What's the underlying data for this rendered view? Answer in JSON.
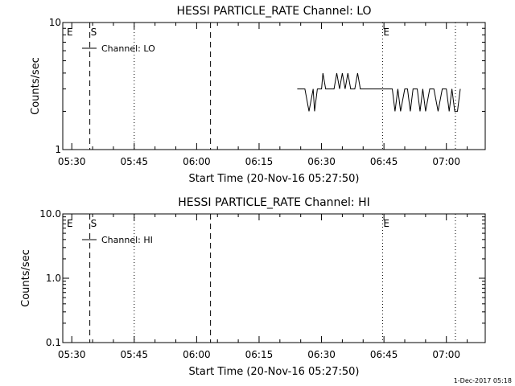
{
  "chart_data": [
    {
      "type": "line",
      "title": "HESSI PARTICLE_RATE Channel: LO",
      "xlabel": "Start Time (20-Nov-16 05:27:50)",
      "ylabel": "Counts/sec",
      "yscale": "log",
      "ylim": [
        1,
        10
      ],
      "xlim": [
        "05:27:50",
        "07:09:20"
      ],
      "x_ticks": [
        "05:30",
        "05:45",
        "06:00",
        "06:15",
        "06:30",
        "06:45",
        "07:00"
      ],
      "y_ticks": [
        "1",
        "10"
      ],
      "legend": "Channel: LO",
      "markers": [
        {
          "label": "E",
          "time": "05:27:50",
          "style": "none"
        },
        {
          "label": "S",
          "time": "05:34:20",
          "style": "dashed"
        },
        {
          "label": "",
          "time": "05:45:00",
          "style": "dotted"
        },
        {
          "label": "",
          "time": "06:03:20",
          "style": "dashed"
        },
        {
          "label": "E",
          "time": "06:44:40",
          "style": "dotted"
        },
        {
          "label": "",
          "time": "07:02:10",
          "style": "dotted"
        }
      ],
      "series": [
        {
          "name": "Channel: LO",
          "x": [
            "06:24:10",
            "06:26:00",
            "06:27:00",
            "06:28:00",
            "06:28:20",
            "06:29:00",
            "06:30:00",
            "06:30:20",
            "06:31:00",
            "06:33:00",
            "06:33:40",
            "06:34:20",
            "06:35:00",
            "06:35:40",
            "06:36:20",
            "06:37:00",
            "06:38:00",
            "06:38:40",
            "06:39:20",
            "06:41:00",
            "06:42:00",
            "06:43:00",
            "06:44:00",
            "06:45:00",
            "06:47:00",
            "06:47:40",
            "06:48:20",
            "06:49:00",
            "06:50:00",
            "06:50:40",
            "06:51:20",
            "06:52:00",
            "06:53:00",
            "06:53:40",
            "06:54:20",
            "06:55:00",
            "06:56:00",
            "06:57:00",
            "06:58:00",
            "06:59:00",
            "07:00:00",
            "07:00:40",
            "07:01:20",
            "07:02:00",
            "07:02:40",
            "07:03:20"
          ],
          "y": [
            3,
            3,
            2,
            3,
            2,
            3,
            3,
            4,
            3,
            3,
            4,
            3,
            4,
            3,
            4,
            3,
            3,
            4,
            3,
            3,
            3,
            3,
            3,
            3,
            3,
            2,
            3,
            2,
            3,
            3,
            2,
            3,
            3,
            2,
            3,
            2,
            3,
            3,
            2,
            3,
            3,
            2,
            3,
            2,
            2,
            3
          ]
        }
      ]
    },
    {
      "type": "line",
      "title": "HESSI PARTICLE_RATE Channel: HI",
      "xlabel": "Start Time (20-Nov-16 05:27:50)",
      "ylabel": "Counts/sec",
      "yscale": "log",
      "ylim": [
        0.1,
        10.0
      ],
      "xlim": [
        "05:27:50",
        "07:09:20"
      ],
      "x_ticks": [
        "05:30",
        "05:45",
        "06:00",
        "06:15",
        "06:30",
        "06:45",
        "07:00"
      ],
      "y_ticks": [
        "0.1",
        "1.0",
        "10.0"
      ],
      "legend": "Channel: HI",
      "markers": [
        {
          "label": "E",
          "time": "05:27:50",
          "style": "none"
        },
        {
          "label": "S",
          "time": "05:34:20",
          "style": "dashed"
        },
        {
          "label": "",
          "time": "05:45:00",
          "style": "dotted"
        },
        {
          "label": "",
          "time": "06:03:20",
          "style": "dashed"
        },
        {
          "label": "E",
          "time": "06:44:40",
          "style": "dotted"
        },
        {
          "label": "",
          "time": "07:02:10",
          "style": "dotted"
        }
      ],
      "series": []
    }
  ],
  "footer": {
    "timestamp": "1-Dec-2017 05:18"
  }
}
